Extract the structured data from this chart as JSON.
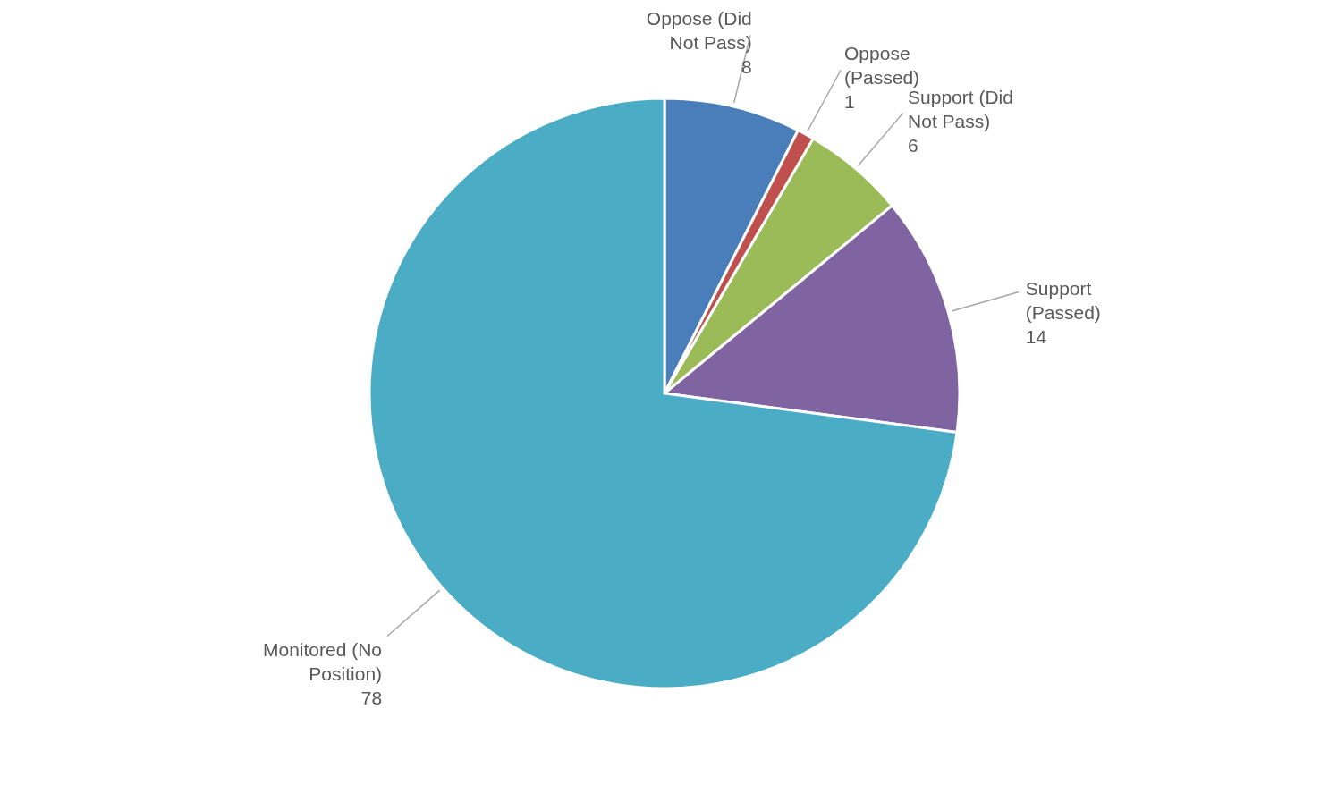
{
  "chart_data": {
    "type": "pie",
    "categories": [
      "Oppose (Did Not Pass)",
      "Oppose (Passed)",
      "Support (Did Not Pass)",
      "Support (Passed)",
      "Monitored (No Position)"
    ],
    "values": [
      8,
      1,
      6,
      14,
      78
    ],
    "colors": [
      "#4a7ebb",
      "#c0504d",
      "#9bbb59",
      "#8064a2",
      "#4bacc6"
    ],
    "data_labels": true
  }
}
